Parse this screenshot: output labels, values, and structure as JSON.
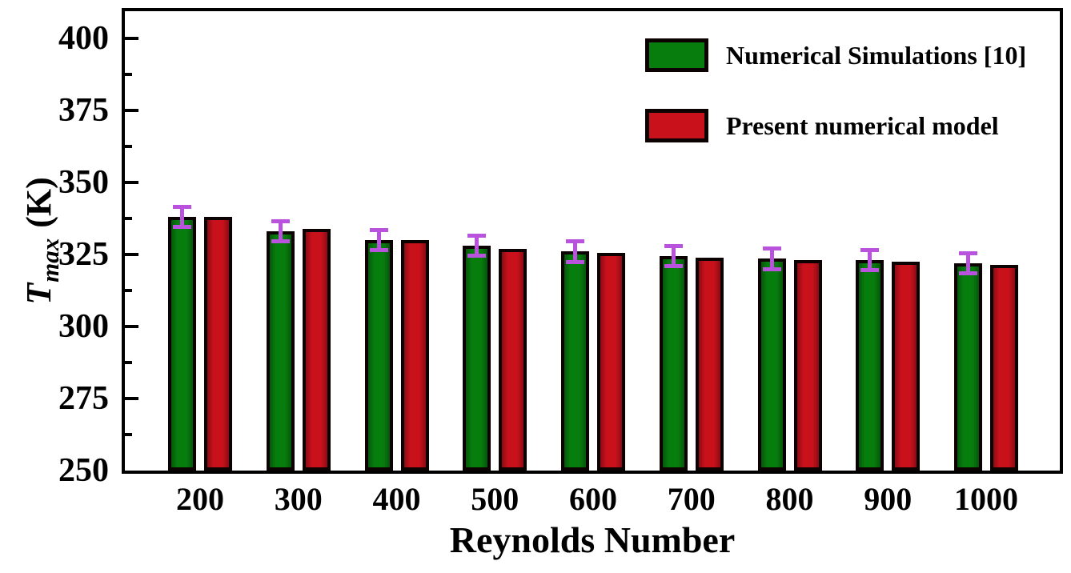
{
  "chart_data": {
    "type": "bar",
    "title": "",
    "xlabel": "Reynolds Number",
    "ylabel": "T_max (K)",
    "ylabel_parts": {
      "symbol": "T",
      "subscript": "max",
      "unit": "(K)"
    },
    "categories": [
      "200",
      "300",
      "400",
      "500",
      "600",
      "700",
      "800",
      "900",
      "1000"
    ],
    "series": [
      {
        "name": "Numerical Simulations [10]",
        "color": "#077d0e",
        "values": [
          338,
          333,
          330,
          328,
          326,
          324.5,
          323.5,
          323,
          322
        ],
        "errors": [
          3.5,
          3.5,
          3.5,
          3.5,
          3.5,
          3.5,
          3.5,
          3.5,
          3.5
        ]
      },
      {
        "name": "Present numerical model",
        "color": "#c9111c",
        "values": [
          338,
          334,
          330,
          327,
          325.5,
          324,
          323,
          322.5,
          321.5
        ]
      }
    ],
    "error_bar_color": "#b952dd",
    "ylim": [
      250,
      410
    ],
    "yticks": [
      250,
      275,
      300,
      325,
      350,
      375,
      400
    ],
    "y_minor_step": 12.5,
    "grid": false,
    "legend_position": "top-right",
    "axis_color": "#000000",
    "background": "#ffffff"
  }
}
